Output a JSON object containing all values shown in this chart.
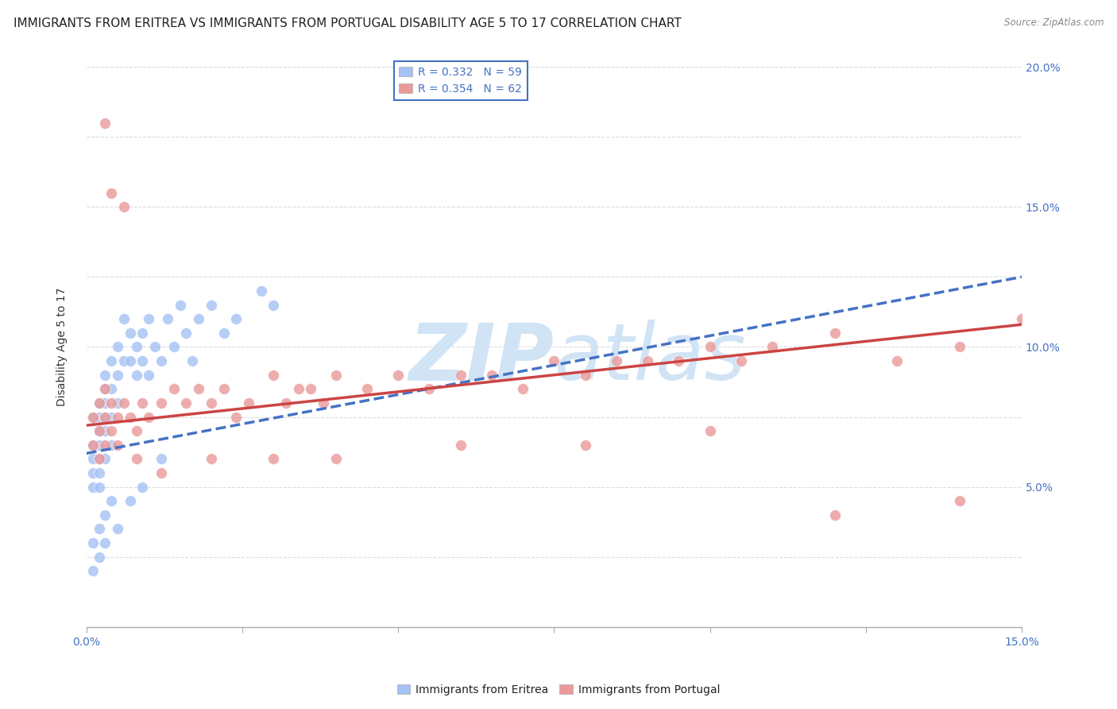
{
  "title": "IMMIGRANTS FROM ERITREA VS IMMIGRANTS FROM PORTUGAL DISABILITY AGE 5 TO 17 CORRELATION CHART",
  "source": "Source: ZipAtlas.com",
  "ylabel": "Disability Age 5 to 17",
  "xlim": [
    0.0,
    0.15
  ],
  "ylim": [
    0.0,
    0.2
  ],
  "legend1_label": "R = 0.332   N = 59",
  "legend2_label": "R = 0.354   N = 62",
  "eritrea_color": "#a4c2f4",
  "portugal_color": "#ea9999",
  "eritrea_line_color": "#4472c4",
  "portugal_line_color": "#cc4444",
  "background_color": "#ffffff",
  "watermark_color": "#d0e4f5",
  "title_fontsize": 11,
  "axis_label_fontsize": 10,
  "tick_fontsize": 10,
  "legend_fontsize": 10,
  "eritrea_x": [
    0.001,
    0.001,
    0.001,
    0.001,
    0.001,
    0.002,
    0.002,
    0.002,
    0.002,
    0.002,
    0.002,
    0.002,
    0.003,
    0.003,
    0.003,
    0.003,
    0.003,
    0.003,
    0.004,
    0.004,
    0.004,
    0.004,
    0.005,
    0.005,
    0.005,
    0.006,
    0.006,
    0.007,
    0.007,
    0.008,
    0.008,
    0.009,
    0.009,
    0.01,
    0.01,
    0.011,
    0.012,
    0.013,
    0.014,
    0.015,
    0.016,
    0.017,
    0.018,
    0.02,
    0.022,
    0.024,
    0.028,
    0.03,
    0.003,
    0.002,
    0.001,
    0.001,
    0.002,
    0.003,
    0.004,
    0.005,
    0.007,
    0.009,
    0.012
  ],
  "eritrea_y": [
    0.065,
    0.055,
    0.075,
    0.06,
    0.05,
    0.07,
    0.08,
    0.065,
    0.075,
    0.055,
    0.06,
    0.05,
    0.085,
    0.09,
    0.08,
    0.07,
    0.06,
    0.075,
    0.095,
    0.085,
    0.075,
    0.065,
    0.09,
    0.08,
    0.1,
    0.095,
    0.11,
    0.105,
    0.095,
    0.1,
    0.09,
    0.105,
    0.095,
    0.11,
    0.09,
    0.1,
    0.095,
    0.11,
    0.1,
    0.115,
    0.105,
    0.095,
    0.11,
    0.115,
    0.105,
    0.11,
    0.12,
    0.115,
    0.04,
    0.035,
    0.03,
    0.02,
    0.025,
    0.03,
    0.045,
    0.035,
    0.045,
    0.05,
    0.06
  ],
  "portugal_x": [
    0.001,
    0.001,
    0.002,
    0.002,
    0.002,
    0.003,
    0.003,
    0.003,
    0.004,
    0.004,
    0.005,
    0.005,
    0.006,
    0.007,
    0.008,
    0.009,
    0.01,
    0.012,
    0.014,
    0.016,
    0.018,
    0.02,
    0.022,
    0.024,
    0.026,
    0.03,
    0.032,
    0.034,
    0.036,
    0.038,
    0.04,
    0.045,
    0.05,
    0.055,
    0.06,
    0.065,
    0.07,
    0.075,
    0.08,
    0.085,
    0.09,
    0.095,
    0.1,
    0.105,
    0.11,
    0.12,
    0.13,
    0.14,
    0.15,
    0.003,
    0.004,
    0.006,
    0.008,
    0.012,
    0.02,
    0.03,
    0.04,
    0.06,
    0.08,
    0.1,
    0.12,
    0.14
  ],
  "portugal_y": [
    0.065,
    0.075,
    0.07,
    0.08,
    0.06,
    0.075,
    0.065,
    0.085,
    0.07,
    0.08,
    0.075,
    0.065,
    0.08,
    0.075,
    0.07,
    0.08,
    0.075,
    0.08,
    0.085,
    0.08,
    0.085,
    0.08,
    0.085,
    0.075,
    0.08,
    0.09,
    0.08,
    0.085,
    0.085,
    0.08,
    0.09,
    0.085,
    0.09,
    0.085,
    0.09,
    0.09,
    0.085,
    0.095,
    0.09,
    0.095,
    0.095,
    0.095,
    0.1,
    0.095,
    0.1,
    0.105,
    0.095,
    0.1,
    0.11,
    0.18,
    0.155,
    0.15,
    0.06,
    0.055,
    0.06,
    0.06,
    0.06,
    0.065,
    0.065,
    0.07,
    0.04,
    0.045
  ],
  "eritrea_line_x0": 0.0,
  "eritrea_line_y0": 0.062,
  "eritrea_line_x1": 0.15,
  "eritrea_line_y1": 0.125,
  "portugal_line_x0": 0.0,
  "portugal_line_y0": 0.072,
  "portugal_line_x1": 0.15,
  "portugal_line_y1": 0.108
}
